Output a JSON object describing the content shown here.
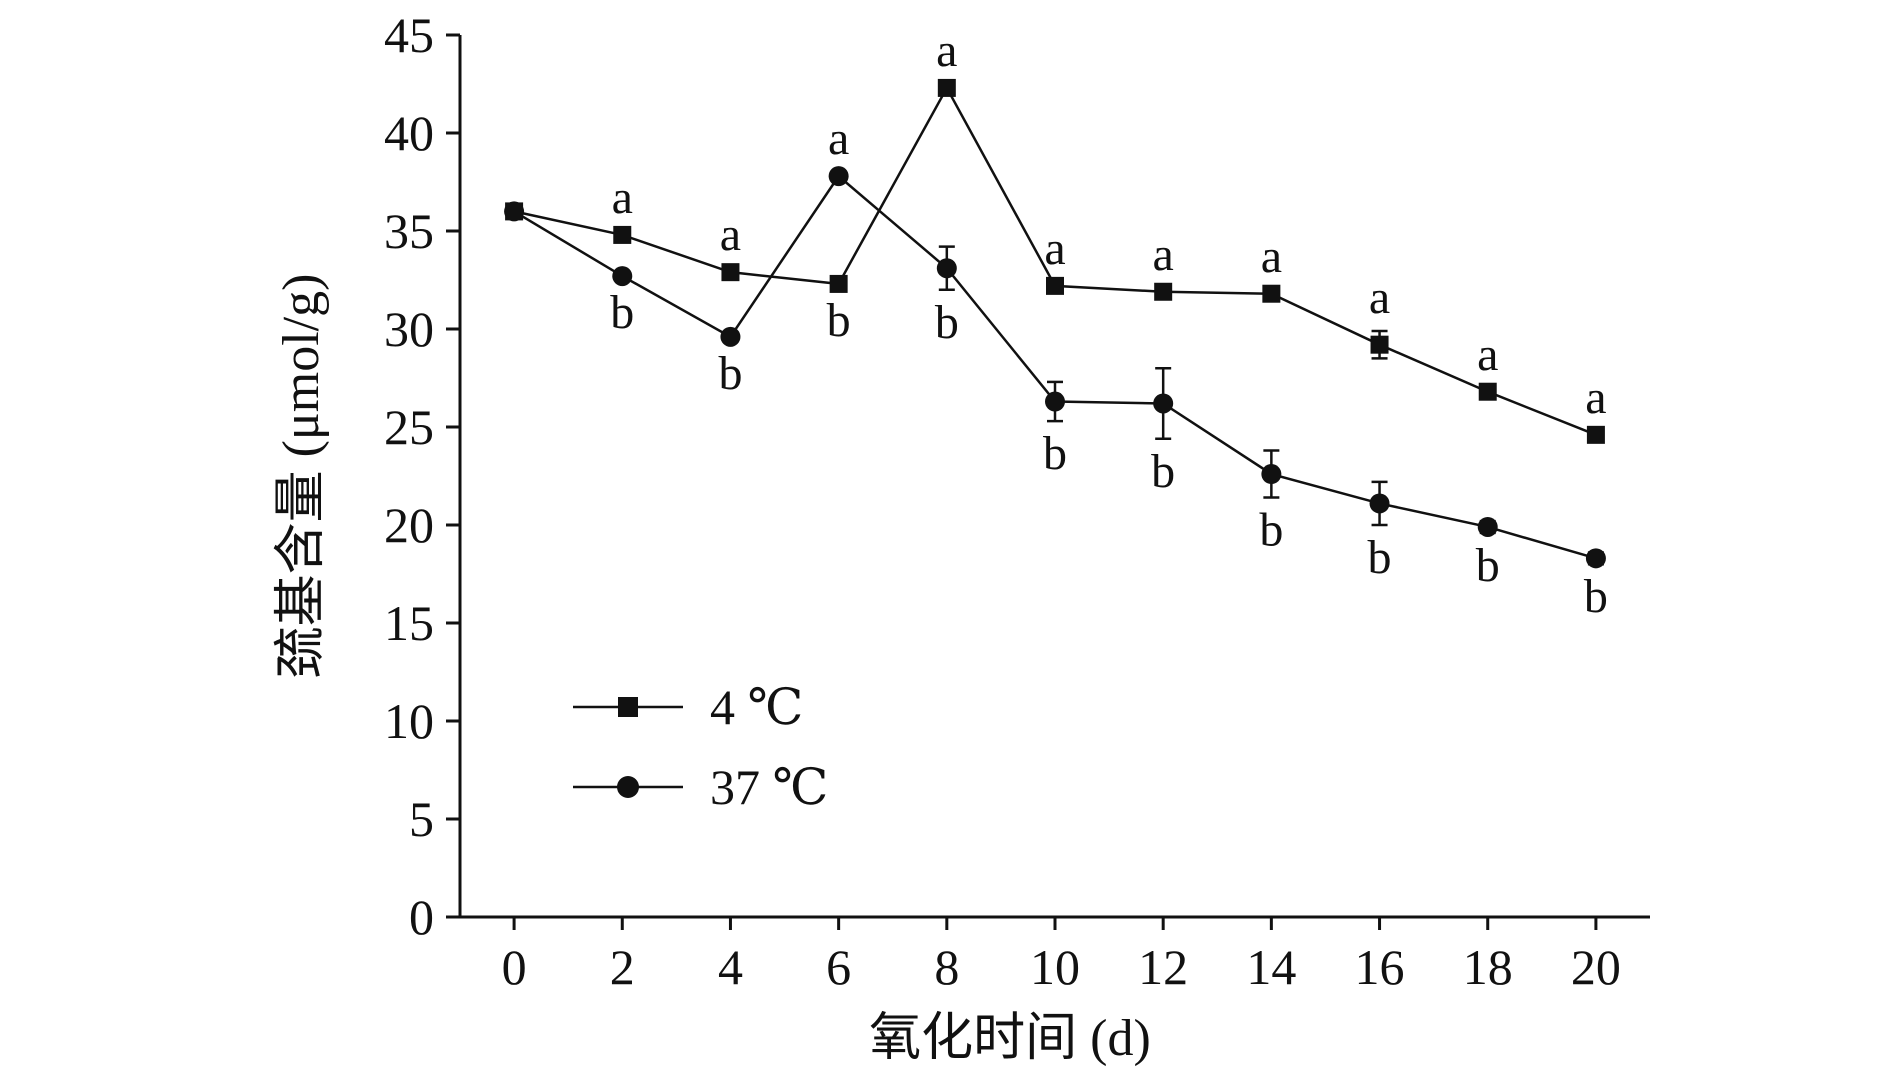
{
  "chart_data": {
    "type": "line",
    "xlabel": "氧化时间 (d)",
    "ylabel": "巯基含量 (μmol/g)",
    "x": [
      0,
      2,
      4,
      6,
      8,
      10,
      12,
      14,
      16,
      18,
      20
    ],
    "xlim": [
      -1,
      21
    ],
    "ylim": [
      0,
      45
    ],
    "y_ticks": [
      0,
      5,
      10,
      15,
      20,
      25,
      30,
      35,
      40,
      45
    ],
    "x_ticks": [
      0,
      2,
      4,
      6,
      8,
      10,
      12,
      14,
      16,
      18,
      20
    ],
    "grid": false,
    "legend_position": "lower-left",
    "series": [
      {
        "name": "4 ℃",
        "marker": "square",
        "color": "#111111",
        "values": [
          36.0,
          34.8,
          32.9,
          32.3,
          42.3,
          32.2,
          31.9,
          31.8,
          29.2,
          26.8,
          24.6
        ],
        "errors": [
          0.2,
          0.2,
          0.2,
          0.2,
          0.2,
          0.2,
          0.2,
          0.2,
          0.7,
          0.2,
          0.2
        ],
        "labels": [
          "",
          "a",
          "a",
          "b",
          "a",
          "a",
          "a",
          "a",
          "a",
          "a",
          "a"
        ]
      },
      {
        "name": "37 ℃",
        "marker": "circle",
        "color": "#111111",
        "values": [
          36.0,
          32.7,
          29.6,
          37.8,
          33.1,
          26.3,
          26.2,
          22.6,
          21.1,
          19.9,
          18.3
        ],
        "errors": [
          0.2,
          0.2,
          0.2,
          0.2,
          1.1,
          1.0,
          1.8,
          1.2,
          1.1,
          0.3,
          0.3
        ],
        "labels": [
          "",
          "b",
          "b",
          "a",
          "b",
          "b",
          "b",
          "b",
          "b",
          "b",
          "b"
        ]
      }
    ]
  }
}
